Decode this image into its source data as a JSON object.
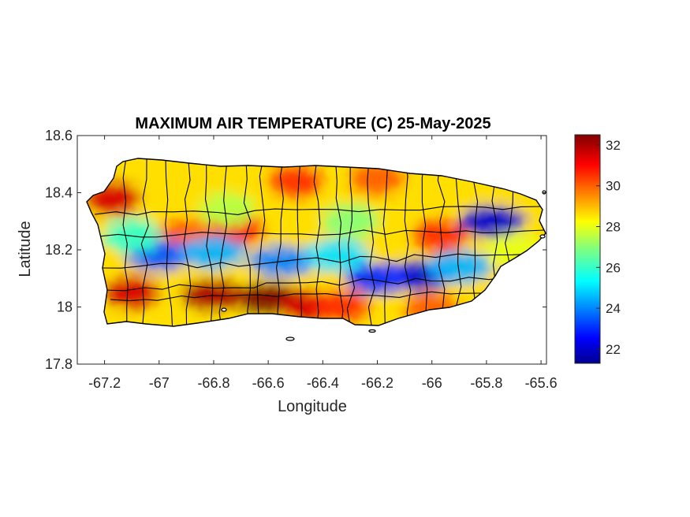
{
  "chart_data": {
    "type": "heatmap",
    "title": "MAXIMUM AIR TEMPERATURE (C) 25-May-2025",
    "xlabel": "Longitude",
    "ylabel": "Latitude",
    "xlim": [
      -67.3,
      -65.58
    ],
    "ylim": [
      17.8,
      18.6
    ],
    "xticks": [
      -67.2,
      -67,
      -66.8,
      -66.6,
      -66.4,
      -66.2,
      -66,
      -65.8,
      -65.6
    ],
    "xtick_labels": [
      "-67.2",
      "-67",
      "-66.8",
      "-66.6",
      "-66.4",
      "-66.2",
      "-66",
      "-65.8",
      "-65.6"
    ],
    "yticks": [
      17.8,
      18,
      18.2,
      18.4,
      18.6
    ],
    "ytick_labels": [
      "17.8",
      "18",
      "18.2",
      "18.4",
      "18.6"
    ],
    "colorbar": {
      "colormap": "jet",
      "range": [
        21.3,
        32.5
      ],
      "ticks": [
        22,
        24,
        26,
        28,
        30,
        32
      ],
      "tick_labels": [
        "22",
        "24",
        "26",
        "28",
        "30",
        "32"
      ]
    },
    "temperature_features": [
      {
        "lon": -66.6,
        "lat": 18.03,
        "value": 32.5
      },
      {
        "lon": -66.8,
        "lat": 18.04,
        "value": 32.0
      },
      {
        "lon": -67.1,
        "lat": 18.05,
        "value": 31.5
      },
      {
        "lon": -66.45,
        "lat": 18.0,
        "value": 31.5
      },
      {
        "lon": -67.17,
        "lat": 18.38,
        "value": 31.5
      },
      {
        "lon": -66.33,
        "lat": 18.0,
        "value": 30.5
      },
      {
        "lon": -66.72,
        "lat": 18.27,
        "value": 31.0
      },
      {
        "lon": -66.9,
        "lat": 18.25,
        "value": 30.0
      },
      {
        "lon": -66.5,
        "lat": 18.44,
        "value": 30.5
      },
      {
        "lon": -66.2,
        "lat": 18.45,
        "value": 30.0
      },
      {
        "lon": -65.97,
        "lat": 18.25,
        "value": 30.5
      },
      {
        "lon": -66.0,
        "lat": 17.99,
        "value": 30.0
      },
      {
        "lon": -65.78,
        "lat": 18.3,
        "value": 22.0
      },
      {
        "lon": -66.05,
        "lat": 18.11,
        "value": 22.0
      },
      {
        "lon": -66.2,
        "lat": 18.1,
        "value": 23.0
      },
      {
        "lon": -67.0,
        "lat": 18.18,
        "value": 23.5
      },
      {
        "lon": -66.8,
        "lat": 18.19,
        "value": 24.5
      },
      {
        "lon": -66.55,
        "lat": 18.16,
        "value": 24.0
      },
      {
        "lon": -66.35,
        "lat": 18.18,
        "value": 25.0
      },
      {
        "lon": -65.9,
        "lat": 18.14,
        "value": 24.5
      },
      {
        "lon": -67.1,
        "lat": 18.25,
        "value": 26.0
      },
      {
        "lon": -66.75,
        "lat": 18.34,
        "value": 27.5
      },
      {
        "lon": -66.3,
        "lat": 18.3,
        "value": 27.0
      },
      {
        "lon": -65.7,
        "lat": 18.2,
        "value": 28.0
      }
    ]
  }
}
